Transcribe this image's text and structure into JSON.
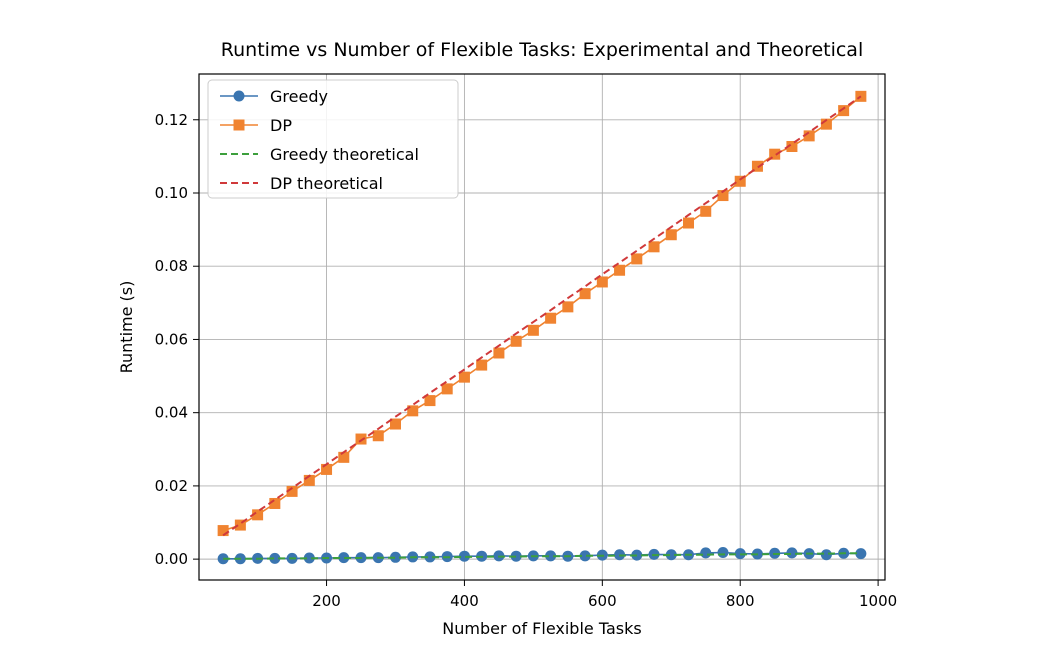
{
  "chart_data": {
    "type": "line",
    "title": "Runtime vs Number of Flexible Tasks: Experimental and Theoretical",
    "xlabel": "Number of Flexible Tasks",
    "ylabel": "Runtime (s)",
    "xlim": [
      15,
      1010
    ],
    "ylim": [
      -0.0057,
      0.1325
    ],
    "xticks": [
      200,
      400,
      600,
      800,
      1000
    ],
    "xtick_labels": [
      "200",
      "400",
      "600",
      "800",
      "1000"
    ],
    "yticks": [
      0.0,
      0.02,
      0.04,
      0.06,
      0.08,
      0.1,
      0.12
    ],
    "ytick_labels": [
      "0.00",
      "0.02",
      "0.04",
      "0.06",
      "0.08",
      "0.10",
      "0.12"
    ],
    "grid": true,
    "legend_position": "top-left",
    "x": [
      50,
      75,
      100,
      125,
      150,
      175,
      200,
      225,
      250,
      275,
      300,
      325,
      350,
      375,
      400,
      425,
      450,
      475,
      500,
      525,
      550,
      575,
      600,
      625,
      650,
      675,
      700,
      725,
      750,
      775,
      800,
      825,
      850,
      875,
      900,
      925,
      950,
      975
    ],
    "series": [
      {
        "name": "Greedy",
        "color": "#3a75b0",
        "style": "solid",
        "marker": "circle",
        "values": [
          0.0001,
          0.0001,
          0.0002,
          0.0002,
          0.0002,
          0.0003,
          0.0003,
          0.0004,
          0.0004,
          0.0004,
          0.0005,
          0.0006,
          0.0006,
          0.0007,
          0.0008,
          0.0008,
          0.0009,
          0.0008,
          0.0009,
          0.0009,
          0.0008,
          0.0009,
          0.0011,
          0.0012,
          0.0011,
          0.0013,
          0.0012,
          0.0012,
          0.0017,
          0.0018,
          0.0015,
          0.0014,
          0.0016,
          0.0017,
          0.0015,
          0.0012,
          0.0016,
          0.0015
        ]
      },
      {
        "name": "DP",
        "color": "#f08330",
        "style": "solid",
        "marker": "square",
        "values": [
          0.0078,
          0.0093,
          0.0121,
          0.0152,
          0.0185,
          0.0215,
          0.0245,
          0.0278,
          0.0328,
          0.0337,
          0.0369,
          0.0405,
          0.0433,
          0.0465,
          0.0497,
          0.053,
          0.0563,
          0.0595,
          0.0625,
          0.0658,
          0.0689,
          0.0725,
          0.0757,
          0.0789,
          0.082,
          0.0853,
          0.0886,
          0.0918,
          0.095,
          0.0993,
          0.1032,
          0.1073,
          0.1106,
          0.1127,
          0.1156,
          0.1188,
          0.1225,
          0.1264
        ]
      },
      {
        "name": "Greedy theoretical",
        "color": "#3c9f3c",
        "style": "dashed",
        "marker": "none",
        "values": [
          0.0001,
          0.0001,
          0.0001,
          0.0002,
          0.0002,
          0.0002,
          0.0003,
          0.0003,
          0.0003,
          0.0004,
          0.0004,
          0.0005,
          0.0005,
          0.0005,
          0.0006,
          0.0006,
          0.0007,
          0.0007,
          0.0008,
          0.0008,
          0.0008,
          0.0009,
          0.0009,
          0.001,
          0.001,
          0.0011,
          0.0011,
          0.0012,
          0.0012,
          0.0013,
          0.0013,
          0.0013,
          0.0014,
          0.0014,
          0.0015,
          0.0015,
          0.0016,
          0.0016
        ]
      },
      {
        "name": "DP theoretical",
        "color": "#d0393a",
        "style": "dashed",
        "marker": "none",
        "values": [
          0.0065,
          0.0097,
          0.013,
          0.0162,
          0.0194,
          0.0227,
          0.0259,
          0.0292,
          0.0324,
          0.0356,
          0.0389,
          0.0421,
          0.0454,
          0.0486,
          0.0518,
          0.0551,
          0.0583,
          0.0616,
          0.0648,
          0.068,
          0.0713,
          0.0745,
          0.0778,
          0.081,
          0.0842,
          0.0875,
          0.0907,
          0.094,
          0.0972,
          0.1004,
          0.1037,
          0.1069,
          0.1102,
          0.1134,
          0.1166,
          0.1199,
          0.1231,
          0.1264
        ]
      }
    ]
  }
}
